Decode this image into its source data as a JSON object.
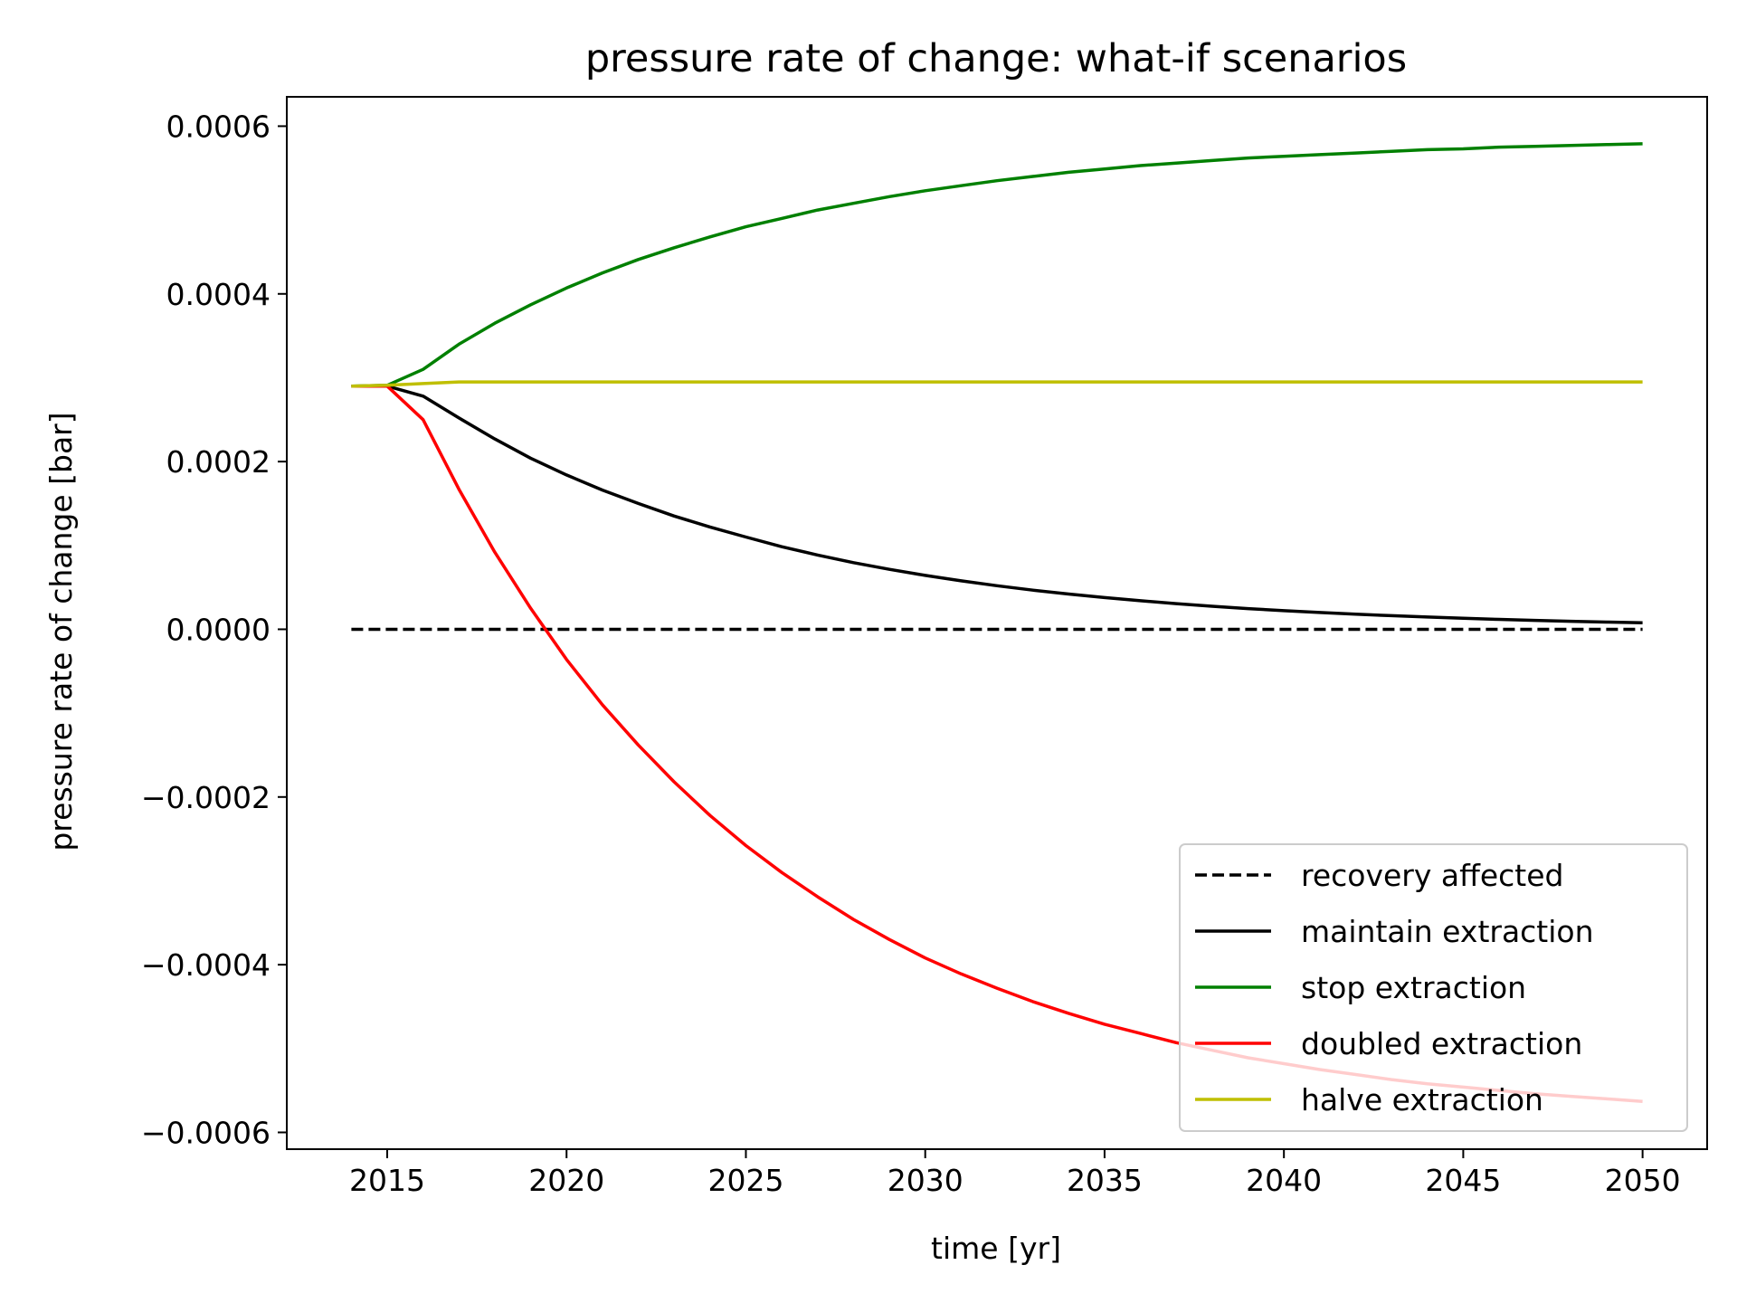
{
  "chart_data": {
    "type": "line",
    "title": "pressure rate of change: what-if scenarios",
    "xlabel": "time [yr]",
    "ylabel": "pressure rate of change [bar]",
    "xlim": [
      2012.2,
      2051.8
    ],
    "ylim": [
      -0.00062,
      0.000635
    ],
    "xticks": [
      2015,
      2020,
      2025,
      2030,
      2035,
      2040,
      2045,
      2050
    ],
    "xtick_labels": [
      "2015",
      "2020",
      "2025",
      "2030",
      "2035",
      "2040",
      "2045",
      "2050"
    ],
    "yticks": [
      0.0006,
      0.0004,
      0.0002,
      0.0,
      -0.0002,
      -0.0004,
      -0.0006
    ],
    "ytick_labels": [
      "0.0006",
      "0.0004",
      "0.0002",
      "0.0000",
      "−0.0002",
      "−0.0004",
      "−0.0006"
    ],
    "grid": false,
    "legend_position": "lower-right",
    "x": [
      2014,
      2015,
      2016,
      2017,
      2018,
      2019,
      2020,
      2021,
      2022,
      2023,
      2024,
      2025,
      2026,
      2027,
      2028,
      2029,
      2030,
      2031,
      2032,
      2033,
      2034,
      2035,
      2036,
      2037,
      2038,
      2039,
      2040,
      2041,
      2042,
      2043,
      2044,
      2045,
      2046,
      2047,
      2048,
      2049,
      2050
    ],
    "series": [
      {
        "name": "recovery affected",
        "color": "#000000",
        "dashed": true,
        "values": [
          0,
          0,
          0,
          0,
          0,
          0,
          0,
          0,
          0,
          0,
          0,
          0,
          0,
          0,
          0,
          0,
          0,
          0,
          0,
          0,
          0,
          0,
          0,
          0,
          0,
          0,
          0,
          0,
          0,
          0,
          0,
          0,
          0,
          0,
          0,
          0,
          0
        ]
      },
      {
        "name": "maintain extraction",
        "color": "#000000",
        "dashed": false,
        "values": [
          0.00029,
          0.00029,
          0.000278,
          0.000252,
          0.000227,
          0.000204,
          0.000184,
          0.000166,
          0.00015,
          0.000135,
          0.000122,
          0.00011,
          9.85e-05,
          8.85e-05,
          7.95e-05,
          7.15e-05,
          6.43e-05,
          5.78e-05,
          5.2e-05,
          4.67e-05,
          4.2e-05,
          3.78e-05,
          3.4e-05,
          3.06e-05,
          2.75e-05,
          2.47e-05,
          2.22e-05,
          2e-05,
          1.8e-05,
          1.62e-05,
          1.46e-05,
          1.31e-05,
          1.18e-05,
          1.06e-05,
          9.5e-06,
          8.6e-06,
          7.7e-06
        ]
      },
      {
        "name": "stop extraction",
        "color": "#008000",
        "dashed": false,
        "values": [
          0.00029,
          0.000291,
          0.00031,
          0.00034,
          0.000365,
          0.000387,
          0.000407,
          0.000425,
          0.000441,
          0.000455,
          0.000468,
          0.00048,
          0.00049,
          0.0005,
          0.000508,
          0.000516,
          0.000523,
          0.000529,
          0.000535,
          0.00054,
          0.000545,
          0.000549,
          0.000553,
          0.000556,
          0.000559,
          0.000562,
          0.000564,
          0.000566,
          0.000568,
          0.00057,
          0.000572,
          0.000573,
          0.000575,
          0.000576,
          0.000577,
          0.000578,
          0.000579
        ]
      },
      {
        "name": "doubled extraction",
        "color": "#ff0000",
        "dashed": false,
        "values": [
          0.00029,
          0.00029,
          0.00025,
          0.000167,
          9.2e-05,
          2.5e-05,
          -3.6e-05,
          -9e-05,
          -0.000138,
          -0.000182,
          -0.000222,
          -0.000258,
          -0.00029,
          -0.000319,
          -0.000346,
          -0.00037,
          -0.000392,
          -0.000411,
          -0.000428,
          -0.000444,
          -0.000458,
          -0.000471,
          -0.000482,
          -0.000493,
          -0.000502,
          -0.000511,
          -0.000518,
          -0.000525,
          -0.000531,
          -0.000537,
          -0.000542,
          -0.000546,
          -0.00055,
          -0.000554,
          -0.000557,
          -0.00056,
          -0.000563
        ]
      },
      {
        "name": "halve extraction",
        "color": "#bfbf00",
        "dashed": false,
        "values": [
          0.00029,
          0.000291,
          0.000293,
          0.000295,
          0.000295,
          0.000295,
          0.000295,
          0.000295,
          0.000295,
          0.000295,
          0.000295,
          0.000295,
          0.000295,
          0.000295,
          0.000295,
          0.000295,
          0.000295,
          0.000295,
          0.000295,
          0.000295,
          0.000295,
          0.000295,
          0.000295,
          0.000295,
          0.000295,
          0.000295,
          0.000295,
          0.000295,
          0.000295,
          0.000295,
          0.000295,
          0.000295,
          0.000295,
          0.000295,
          0.000295,
          0.000295,
          0.000295
        ]
      }
    ]
  }
}
